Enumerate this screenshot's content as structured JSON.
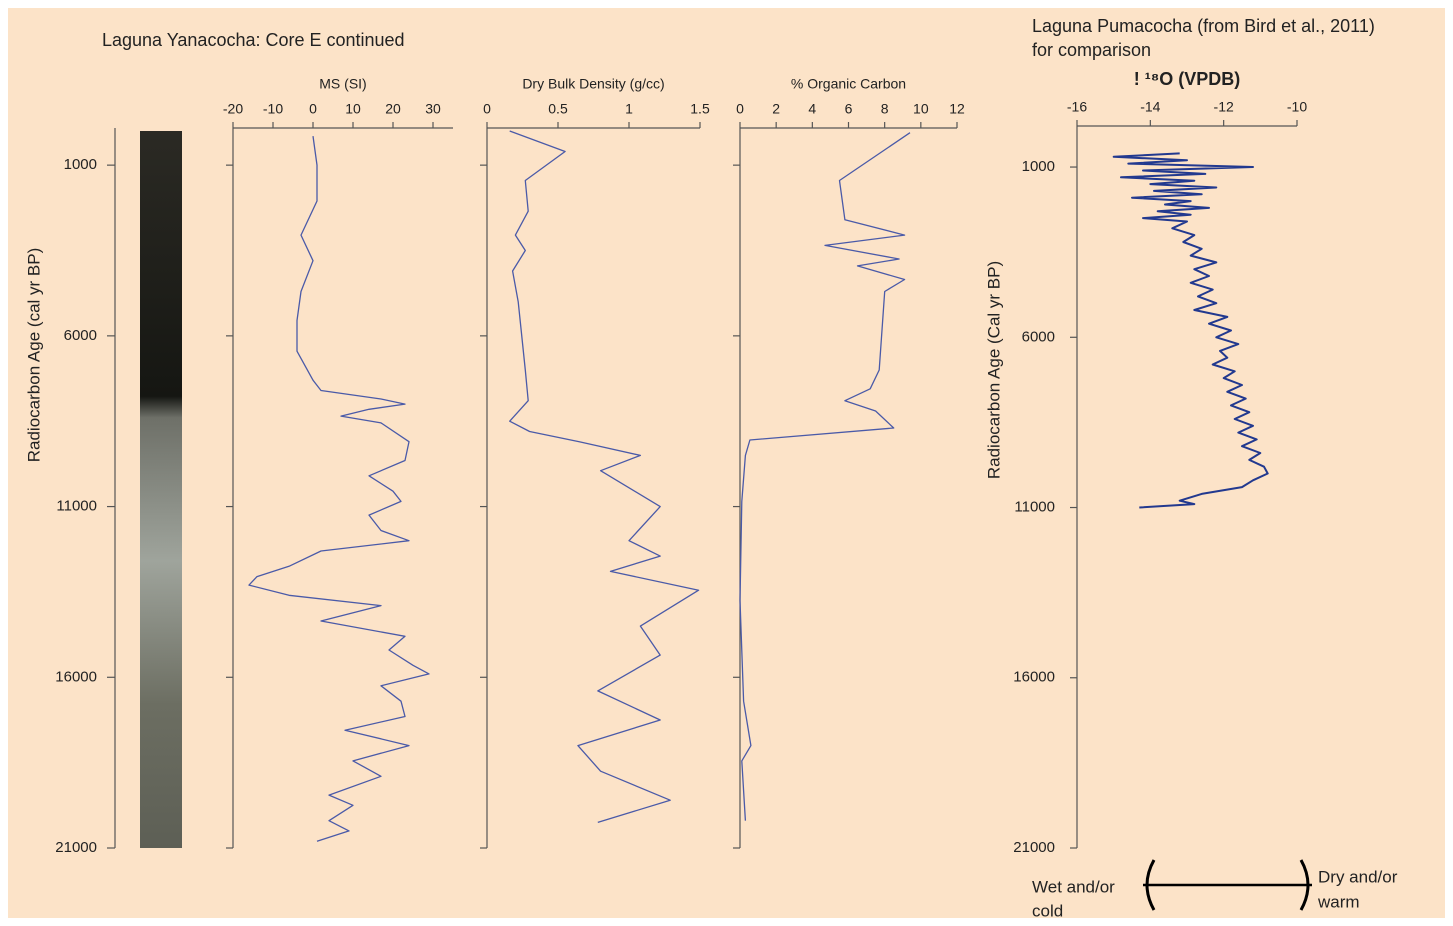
{
  "chart_data": [
    {
      "type": "line",
      "title": "Laguna Yanacocha: Core E continued",
      "ylabel": "Radiocarbon Age (cal yr BP)",
      "ylim": [
        21000,
        0
      ],
      "yticks": [
        1000,
        6000,
        11000,
        16000,
        21000
      ],
      "xlabel": "MS (SI)",
      "xlim": [
        -20,
        35
      ],
      "xticks": [
        -20,
        -10,
        0,
        10,
        20,
        30
      ],
      "color": "#4a5aa8",
      "x": [
        150,
        1000,
        2050,
        3050,
        3800,
        4700,
        5550,
        6450,
        7300,
        7600,
        7850,
        8000,
        8150,
        8350,
        8550,
        9100,
        9650,
        10100,
        10550,
        10850,
        11250,
        11700,
        12000,
        12300,
        12750,
        13050,
        13300,
        13600,
        13900,
        14350,
        14800,
        15200,
        15650,
        15900,
        16250,
        16700,
        17150,
        17550,
        18000,
        18450,
        18900,
        19450,
        19750,
        20200,
        20500,
        20800
      ],
      "values": [
        0,
        1,
        1,
        -3,
        0,
        -3,
        -4,
        -4,
        0,
        2,
        17,
        23,
        14,
        7,
        17,
        24,
        23,
        14,
        20,
        22,
        14,
        17,
        24,
        2,
        -6,
        -14,
        -16,
        -6,
        17,
        2,
        23,
        19,
        25,
        29,
        17,
        22,
        23,
        8,
        24,
        10,
        17,
        4,
        10,
        4,
        9,
        1
      ]
    },
    {
      "type": "line",
      "xlabel": "Dry Bulk Density (g/cc)",
      "xlim": [
        0,
        1.5
      ],
      "xticks": [
        0,
        0.5,
        1,
        1.5
      ],
      "color": "#4a5aa8",
      "x": [
        0,
        600,
        1450,
        2350,
        3050,
        3500,
        4100,
        5000,
        7000,
        7900,
        8500,
        8800,
        9100,
        9500,
        9950,
        11000,
        12000,
        12450,
        12900,
        13450,
        14500,
        15350,
        16400,
        17250,
        18000,
        18750,
        19600,
        20250
      ],
      "values": [
        0.16,
        0.55,
        0.27,
        0.29,
        0.2,
        0.27,
        0.18,
        0.22,
        0.27,
        0.29,
        0.16,
        0.3,
        0.65,
        1.08,
        0.8,
        1.22,
        1.0,
        1.22,
        0.87,
        1.49,
        1.08,
        1.22,
        0.78,
        1.22,
        0.64,
        0.8,
        1.29,
        0.78
      ]
    },
    {
      "type": "line",
      "xlabel": "% Organic Carbon",
      "xlim": [
        0,
        12
      ],
      "xticks": [
        0,
        2,
        4,
        6,
        8,
        10,
        12
      ],
      "color": "#4a5aa8",
      "x": [
        50,
        1450,
        2600,
        3050,
        3350,
        3750,
        3950,
        4350,
        4700,
        7000,
        7550,
        7900,
        8200,
        8700,
        9050,
        9500,
        10850,
        13750,
        16700,
        18000,
        18450,
        20200
      ],
      "values": [
        9.4,
        5.5,
        5.8,
        9.1,
        4.7,
        8.8,
        6.5,
        9.1,
        8.0,
        7.7,
        7.2,
        5.8,
        7.5,
        8.5,
        0.55,
        0.3,
        0.1,
        0,
        0.2,
        0.6,
        0.1,
        0.3
      ]
    },
    {
      "type": "line",
      "title": [
        "Laguna Pumacocha (from Bird et al., 2011)",
        "for comparison"
      ],
      "ylabel": "Radiocarbon Age (Cal yr BP)",
      "ylim": [
        21000,
        0
      ],
      "yticks": [
        1000,
        6000,
        11000,
        16000,
        21000
      ],
      "xlabel": "! ¹⁸O (VPDB)",
      "xlim": [
        -16,
        -10
      ],
      "xticks": [
        -16,
        -14,
        -12,
        -10
      ],
      "color": "#22398f",
      "annotations": [
        [
          "Wet and/or",
          "cold"
        ],
        [
          "Dry and/or",
          "warm"
        ]
      ],
      "x": [
        600,
        700,
        800,
        900,
        1000,
        1100,
        1200,
        1300,
        1400,
        1500,
        1600,
        1700,
        1800,
        1900,
        2000,
        2100,
        2200,
        2300,
        2400,
        2500,
        2600,
        2800,
        3000,
        3200,
        3400,
        3600,
        3800,
        4000,
        4200,
        4400,
        4600,
        4800,
        5000,
        5200,
        5400,
        5600,
        5800,
        6000,
        6200,
        6400,
        6600,
        6800,
        7000,
        7200,
        7400,
        7600,
        7800,
        8000,
        8200,
        8400,
        8600,
        8800,
        9000,
        9200,
        9400,
        9600,
        9800,
        10000,
        10200,
        10400,
        10600,
        10800,
        10900,
        11000
      ],
      "values": [
        -13.2,
        -15.0,
        -13.0,
        -14.6,
        -11.2,
        -14.2,
        -12.5,
        -14.8,
        -12.8,
        -14.0,
        -12.2,
        -13.9,
        -12.6,
        -14.5,
        -12.9,
        -13.6,
        -12.4,
        -13.8,
        -12.9,
        -14.2,
        -13.0,
        -13.4,
        -12.8,
        -13.1,
        -12.6,
        -12.9,
        -12.2,
        -12.8,
        -12.4,
        -12.9,
        -12.3,
        -12.7,
        -12.2,
        -12.8,
        -11.9,
        -12.4,
        -11.8,
        -12.2,
        -11.6,
        -12.1,
        -11.9,
        -12.3,
        -11.7,
        -12.0,
        -11.5,
        -11.9,
        -11.4,
        -11.8,
        -11.3,
        -11.7,
        -11.2,
        -11.6,
        -11.1,
        -11.5,
        -11.0,
        -11.3,
        -10.9,
        -10.8,
        -11.2,
        -11.5,
        -12.6,
        -13.2,
        -12.8,
        -14.3
      ]
    }
  ]
}
